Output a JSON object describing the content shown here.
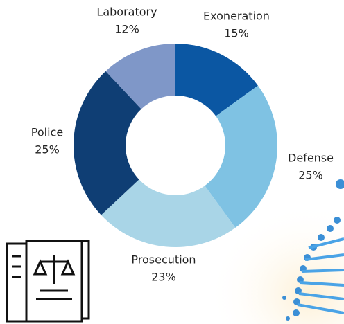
{
  "chart_data": {
    "type": "pie",
    "donut": true,
    "categories": [
      "Exoneration",
      "Defense",
      "Prosecution",
      "Police",
      "Laboratory"
    ],
    "values": [
      15,
      25,
      23,
      25,
      12
    ],
    "value_labels": [
      "15%",
      "25%",
      "23%",
      "25%",
      "12%"
    ],
    "colors": [
      "#0b57a3",
      "#7fc2e3",
      "#a9d5e7",
      "#0f3e74",
      "#7f97c8"
    ]
  }
}
